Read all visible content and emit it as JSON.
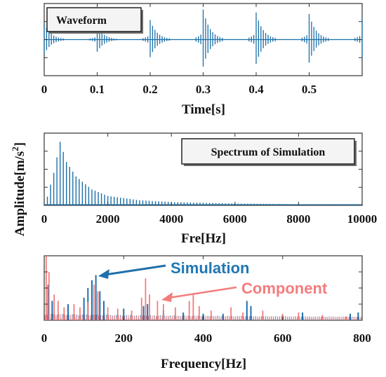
{
  "shared": {
    "ylabel": "Amplitude[m/s",
    "ylabel_sup": "2",
    "ylabel_end": "]"
  },
  "chart_data": [
    {
      "type": "line",
      "label_box": "Waveform",
      "xlabel": "Time[s]",
      "xlim": [
        0,
        0.6
      ],
      "x_ticks": [
        "0",
        "0.1",
        "0.2",
        "0.3",
        "0.4",
        "0.5"
      ],
      "x_tick_values": [
        0,
        0.1,
        0.2,
        0.3,
        0.4,
        0.5
      ],
      "baseline": 0,
      "ylim": [
        -1.2,
        1.2
      ],
      "series": [
        {
          "color": "#1a6fa8",
          "impulses": [
            {
              "t": 0.0,
              "peak": 0.55
            },
            {
              "t": 0.1,
              "peak": 0.45
            },
            {
              "t": 0.2,
              "peak": 0.65
            },
            {
              "t": 0.3,
              "peak": 1.0
            },
            {
              "t": 0.4,
              "peak": 0.9
            },
            {
              "t": 0.5,
              "peak": 0.85
            },
            {
              "t": 0.6,
              "peak": 0.7
            }
          ]
        }
      ]
    },
    {
      "type": "bar",
      "label_box": "Spectrum of Simulation",
      "xlabel": "Fre[Hz]",
      "xlim": [
        0,
        10000
      ],
      "x_ticks": [
        "0",
        "2000",
        "4000",
        "6000",
        "8000",
        "10000"
      ],
      "x_tick_values": [
        0,
        2000,
        4000,
        6000,
        8000,
        10000
      ],
      "ylim": [
        0,
        1.0
      ],
      "harmonic_spacing_hz": 100,
      "series": [
        {
          "color": "#1a6fa8",
          "envelope": [
            {
              "f": 100,
              "amp": 0.12
            },
            {
              "f": 300,
              "amp": 0.45
            },
            {
              "f": 500,
              "amp": 0.88
            },
            {
              "f": 700,
              "amp": 0.6
            },
            {
              "f": 1000,
              "amp": 0.4
            },
            {
              "f": 1500,
              "amp": 0.22
            },
            {
              "f": 2000,
              "amp": 0.13
            },
            {
              "f": 3000,
              "amp": 0.07
            },
            {
              "f": 4000,
              "amp": 0.045
            },
            {
              "f": 6000,
              "amp": 0.025
            },
            {
              "f": 8000,
              "amp": 0.015
            },
            {
              "f": 10000,
              "amp": 0.01
            }
          ]
        }
      ]
    },
    {
      "type": "bar",
      "xlabel": "Frequency[Hz]",
      "xlim": [
        0,
        800
      ],
      "x_ticks": [
        "0",
        "200",
        "400",
        "600",
        "800"
      ],
      "x_tick_values": [
        0,
        200,
        400,
        600,
        800
      ],
      "ylim": [
        0,
        1.0
      ],
      "series": [
        {
          "name": "Simulation",
          "color": "#1f6fab",
          "lines": [
            {
              "f": 10,
              "amp": 0.55
            },
            {
              "f": 20,
              "amp": 0.3
            },
            {
              "f": 60,
              "amp": 0.25
            },
            {
              "f": 100,
              "amp": 0.35
            },
            {
              "f": 110,
              "amp": 0.5
            },
            {
              "f": 120,
              "amp": 0.62
            },
            {
              "f": 130,
              "amp": 0.7
            },
            {
              "f": 140,
              "amp": 0.45
            },
            {
              "f": 150,
              "amp": 0.3
            },
            {
              "f": 200,
              "amp": 0.18
            },
            {
              "f": 250,
              "amp": 0.22
            },
            {
              "f": 260,
              "amp": 0.25
            },
            {
              "f": 300,
              "amp": 0.15
            },
            {
              "f": 350,
              "amp": 0.12
            },
            {
              "f": 400,
              "amp": 0.1
            },
            {
              "f": 450,
              "amp": 0.1
            },
            {
              "f": 510,
              "amp": 0.3
            },
            {
              "f": 520,
              "amp": 0.22
            },
            {
              "f": 600,
              "amp": 0.08
            },
            {
              "f": 650,
              "amp": 0.12
            },
            {
              "f": 700,
              "amp": 0.06
            },
            {
              "f": 770,
              "amp": 0.1
            },
            {
              "f": 790,
              "amp": 0.12
            }
          ]
        },
        {
          "name": "Component",
          "color": "#f47c7c",
          "lines": [
            {
              "f": 5,
              "amp": 1.0
            },
            {
              "f": 12,
              "amp": 0.75
            },
            {
              "f": 25,
              "amp": 0.4
            },
            {
              "f": 35,
              "amp": 0.3
            },
            {
              "f": 50,
              "amp": 0.2
            },
            {
              "f": 75,
              "amp": 0.25
            },
            {
              "f": 90,
              "amp": 0.2
            },
            {
              "f": 110,
              "amp": 0.28
            },
            {
              "f": 125,
              "amp": 0.55
            },
            {
              "f": 135,
              "amp": 0.45
            },
            {
              "f": 160,
              "amp": 0.2
            },
            {
              "f": 185,
              "amp": 0.18
            },
            {
              "f": 220,
              "amp": 0.15
            },
            {
              "f": 245,
              "amp": 0.35
            },
            {
              "f": 255,
              "amp": 0.65
            },
            {
              "f": 265,
              "amp": 0.4
            },
            {
              "f": 285,
              "amp": 0.3
            },
            {
              "f": 300,
              "amp": 0.25
            },
            {
              "f": 330,
              "amp": 0.2
            },
            {
              "f": 365,
              "amp": 0.3
            },
            {
              "f": 375,
              "amp": 0.4
            },
            {
              "f": 390,
              "amp": 0.22
            },
            {
              "f": 420,
              "amp": 0.15
            },
            {
              "f": 470,
              "amp": 0.2
            },
            {
              "f": 500,
              "amp": 0.12
            },
            {
              "f": 550,
              "amp": 0.15
            },
            {
              "f": 600,
              "amp": 0.1
            },
            {
              "f": 640,
              "amp": 0.12
            },
            {
              "f": 700,
              "amp": 0.08
            },
            {
              "f": 760,
              "amp": 0.06
            }
          ]
        }
      ]
    }
  ]
}
